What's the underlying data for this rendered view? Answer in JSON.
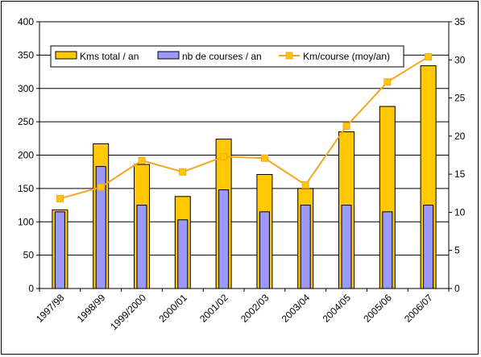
{
  "chart_data": {
    "type": "bar",
    "title": "",
    "xlabel": "",
    "ylabel": "",
    "y2label": "",
    "categories": [
      "1997/98",
      "1998/99",
      "1999/2000",
      "2000/01",
      "2001/02",
      "2002/03",
      "2003/04",
      "2004/05",
      "2005/06",
      "2006/07"
    ],
    "ylim": [
      0,
      400
    ],
    "yticks": [
      0,
      50,
      100,
      150,
      200,
      250,
      300,
      350,
      400
    ],
    "y2lim": [
      0,
      35
    ],
    "y2ticks": [
      0,
      5,
      10,
      15,
      20,
      25,
      30,
      35
    ],
    "grid": "horizontal",
    "legend_position": "top",
    "series": [
      {
        "name": "Kms total / an",
        "kind": "bar",
        "axis": "left",
        "color": "#FFC800",
        "values": [
          118,
          217,
          186,
          138,
          224,
          171,
          150,
          235,
          273,
          334
        ]
      },
      {
        "name": "nb de courses / an",
        "kind": "bar",
        "axis": "left",
        "color": "#9999FF",
        "values": [
          115,
          183,
          125,
          103,
          148,
          115,
          125,
          125,
          115,
          125
        ]
      },
      {
        "name": "Km/course (moy/an)",
        "kind": "line",
        "axis": "right",
        "color": "#F5A623",
        "values": [
          11.8,
          13.3,
          16.8,
          15.3,
          17.3,
          17.1,
          13.6,
          21.3,
          27.1,
          30.4
        ]
      }
    ]
  }
}
